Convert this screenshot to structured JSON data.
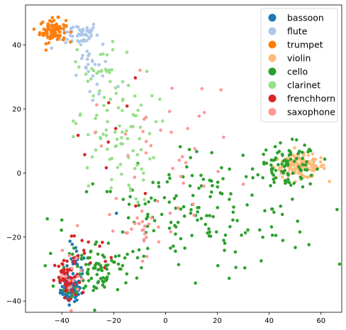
{
  "chart_data": {
    "type": "scatter",
    "title": "",
    "xlabel": "",
    "ylabel": "",
    "xlim": [
      -54,
      68
    ],
    "ylim": [
      -43.5,
      52.5
    ],
    "x_ticks": [
      -40,
      -20,
      0,
      20,
      40,
      60
    ],
    "y_ticks": [
      -40,
      -20,
      0,
      20,
      40
    ],
    "x_tick_labels": [
      "−40",
      "−20",
      "0",
      "20",
      "40",
      "60"
    ],
    "y_tick_labels": [
      "−40",
      "−20",
      "0",
      "20",
      "40"
    ],
    "grid": false,
    "legend_position": "top-right",
    "series": [
      {
        "name": "bassoon",
        "color": "#1f77b4",
        "clusters": [
          {
            "cx": -36.5,
            "cy": -36.5,
            "sx": 2.0,
            "sy": 1.8,
            "n": 80
          },
          {
            "cx": -34.5,
            "cy": -30,
            "sx": 2.0,
            "sy": 4.0,
            "n": 30
          },
          {
            "cx": -19,
            "cy": -12.5,
            "sx": 0.4,
            "sy": 0.4,
            "n": 1
          }
        ]
      },
      {
        "name": "flute",
        "color": "#aec7e8",
        "clusters": [
          {
            "cx": -33,
            "cy": 43.5,
            "sx": 3.5,
            "sy": 2.0,
            "n": 50
          },
          {
            "cx": -30,
            "cy": 35,
            "sx": 4.0,
            "sy": 3.5,
            "n": 20
          },
          {
            "cx": -25,
            "cy": 28,
            "sx": 3.0,
            "sy": 2.5,
            "n": 5
          }
        ]
      },
      {
        "name": "trumpet",
        "color": "#ff7f0e",
        "clusters": [
          {
            "cx": -43.5,
            "cy": 44.5,
            "sx": 2.5,
            "sy": 1.8,
            "n": 85
          }
        ]
      },
      {
        "name": "violin",
        "color": "#ffbb78",
        "clusters": [
          {
            "cx": 52,
            "cy": 2,
            "sx": 5.0,
            "sy": 1.8,
            "n": 130
          }
        ]
      },
      {
        "name": "cello",
        "color": "#2ca02c",
        "clusters": [
          {
            "cx": 47,
            "cy": 2,
            "sx": 6.0,
            "sy": 3.5,
            "n": 90
          },
          {
            "cx": 10,
            "cy": -15,
            "sx": 24.0,
            "sy": 8.0,
            "n": 140
          },
          {
            "cx": -26,
            "cy": -30,
            "sx": 7.0,
            "sy": 4.5,
            "n": 90
          },
          {
            "cx": 10,
            "cy": 3,
            "sx": 8.0,
            "sy": 4.0,
            "n": 15
          }
        ]
      },
      {
        "name": "clarinet",
        "color": "#98df8a",
        "clusters": [
          {
            "cx": -20,
            "cy": 12,
            "sx": 8.0,
            "sy": 11.0,
            "n": 90
          },
          {
            "cx": -26,
            "cy": 33,
            "sx": 4.0,
            "sy": 4.0,
            "n": 20
          }
        ]
      },
      {
        "name": "frenchhorn",
        "color": "#d62728",
        "clusters": [
          {
            "cx": -37.5,
            "cy": -34,
            "sx": 2.5,
            "sy": 3.5,
            "n": 60
          },
          {
            "cx": -30,
            "cy": -24,
            "sx": 5.0,
            "sy": 4.0,
            "n": 15
          },
          {
            "cx": -25,
            "cy": 5,
            "sx": 8.0,
            "sy": 12.0,
            "n": 12
          }
        ]
      },
      {
        "name": "saxophone",
        "color": "#ff9896",
        "clusters": [
          {
            "cx": 0,
            "cy": 8,
            "sx": 14.0,
            "sy": 11.0,
            "n": 40
          },
          {
            "cx": -10,
            "cy": -18,
            "sx": 8.0,
            "sy": 4.0,
            "n": 25
          },
          {
            "cx": -35,
            "cy": -32,
            "sx": 3.0,
            "sy": 3.5,
            "n": 15
          }
        ]
      }
    ]
  }
}
